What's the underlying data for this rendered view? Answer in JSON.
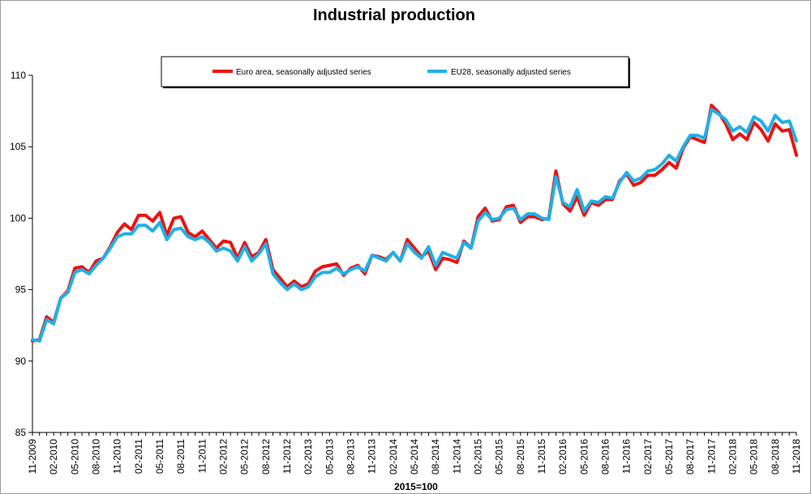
{
  "chart_data": {
    "type": "line",
    "title": "Industrial production",
    "xlabel": "2015=100",
    "ylabel": "",
    "ylim": [
      85,
      110
    ],
    "yticks": [
      85,
      90,
      95,
      100,
      105,
      110
    ],
    "x": [
      "11-2009",
      "12-2009",
      "01-2010",
      "02-2010",
      "03-2010",
      "04-2010",
      "05-2010",
      "06-2010",
      "07-2010",
      "08-2010",
      "09-2010",
      "10-2010",
      "11-2010",
      "12-2010",
      "01-2011",
      "02-2011",
      "03-2011",
      "04-2011",
      "05-2011",
      "06-2011",
      "07-2011",
      "08-2011",
      "09-2011",
      "10-2011",
      "11-2011",
      "12-2011",
      "01-2012",
      "02-2012",
      "03-2012",
      "04-2012",
      "05-2012",
      "06-2012",
      "07-2012",
      "08-2012",
      "09-2012",
      "10-2012",
      "11-2012",
      "12-2012",
      "01-2013",
      "02-2013",
      "03-2013",
      "04-2013",
      "05-2013",
      "06-2013",
      "07-2013",
      "08-2013",
      "09-2013",
      "10-2013",
      "11-2013",
      "12-2013",
      "01-2014",
      "02-2014",
      "03-2014",
      "04-2014",
      "05-2014",
      "06-2014",
      "07-2014",
      "08-2014",
      "09-2014",
      "10-2014",
      "11-2014",
      "12-2014",
      "01-2015",
      "02-2015",
      "03-2015",
      "04-2015",
      "05-2015",
      "06-2015",
      "07-2015",
      "08-2015",
      "09-2015",
      "10-2015",
      "11-2015",
      "12-2015",
      "01-2016",
      "02-2016",
      "03-2016",
      "04-2016",
      "05-2016",
      "06-2016",
      "07-2016",
      "08-2016",
      "09-2016",
      "10-2016",
      "11-2016",
      "12-2016",
      "01-2017",
      "02-2017",
      "03-2017",
      "04-2017",
      "05-2017",
      "06-2017",
      "07-2017",
      "08-2017",
      "09-2017",
      "10-2017",
      "11-2017",
      "12-2017",
      "01-2018",
      "02-2018",
      "03-2018",
      "04-2018",
      "05-2018",
      "06-2018",
      "07-2018",
      "08-2018",
      "09-2018",
      "10-2018",
      "11-2018"
    ],
    "xtick_labels": [
      "11-2009",
      "02-2010",
      "05-2010",
      "08-2010",
      "11-2010",
      "02-2011",
      "05-2011",
      "08-2011",
      "11-2011",
      "02-2012",
      "05-2012",
      "08-2012",
      "11-2012",
      "02-2013",
      "05-2013",
      "08-2013",
      "11-2013",
      "02-2014",
      "05-2014",
      "08-2014",
      "11-2014",
      "02-2015",
      "05-2015",
      "08-2015",
      "11-2015",
      "02-2016",
      "05-2016",
      "08-2016",
      "11-2016",
      "02-2017",
      "05-2017",
      "08-2017",
      "11-2017",
      "02-2018",
      "05-2018",
      "08-2018",
      "11-2018"
    ],
    "grid": false,
    "legend_position": "top-center",
    "series": [
      {
        "name": "Euro area, seasonally adjusted series",
        "color": "#ee1111",
        "values": [
          91.4,
          91.5,
          93.1,
          92.7,
          94.4,
          94.9,
          96.5,
          96.6,
          96.2,
          97.0,
          97.2,
          98.0,
          99.0,
          99.6,
          99.2,
          100.2,
          100.2,
          99.8,
          100.4,
          98.8,
          100.0,
          100.1,
          99.0,
          98.7,
          99.1,
          98.5,
          97.9,
          98.4,
          98.3,
          97.2,
          98.3,
          97.3,
          97.6,
          98.5,
          96.4,
          95.8,
          95.2,
          95.6,
          95.2,
          95.4,
          96.3,
          96.6,
          96.7,
          96.8,
          96.0,
          96.5,
          96.7,
          96.1,
          97.4,
          97.3,
          97.1,
          97.6,
          97.0,
          98.5,
          97.9,
          97.3,
          97.7,
          96.4,
          97.2,
          97.1,
          96.9,
          98.4,
          97.9,
          100.1,
          100.7,
          99.8,
          99.9,
          100.8,
          100.9,
          99.7,
          100.1,
          100.1,
          99.9,
          100.0,
          103.3,
          101.0,
          100.5,
          101.5,
          100.2,
          101.1,
          100.9,
          101.3,
          101.3,
          102.6,
          103.1,
          102.3,
          102.5,
          103.0,
          103.0,
          103.4,
          103.9,
          103.5,
          104.9,
          105.7,
          105.5,
          105.3,
          107.9,
          107.4,
          106.6,
          105.5,
          105.9,
          105.5,
          106.7,
          106.2,
          105.4,
          106.6,
          106.1,
          106.2,
          104.4
        ]
      },
      {
        "name": "EU28, seasonally adjusted series",
        "color": "#1fb0e6",
        "values": [
          91.5,
          91.4,
          92.9,
          92.6,
          94.4,
          94.8,
          96.2,
          96.4,
          96.1,
          96.7,
          97.2,
          97.9,
          98.7,
          98.9,
          98.9,
          99.5,
          99.5,
          99.1,
          99.7,
          98.5,
          99.2,
          99.3,
          98.7,
          98.5,
          98.7,
          98.3,
          97.7,
          97.9,
          97.7,
          97.0,
          98.0,
          97.0,
          97.5,
          98.2,
          96.1,
          95.5,
          95.0,
          95.4,
          95.0,
          95.2,
          95.9,
          96.2,
          96.2,
          96.5,
          96.1,
          96.4,
          96.6,
          96.3,
          97.4,
          97.2,
          97.0,
          97.6,
          97.0,
          98.2,
          97.6,
          97.2,
          98.0,
          96.7,
          97.6,
          97.4,
          97.2,
          98.3,
          97.9,
          99.8,
          100.4,
          99.9,
          100.0,
          100.6,
          100.7,
          99.9,
          100.3,
          100.3,
          100.0,
          99.9,
          102.9,
          101.1,
          100.8,
          102.0,
          100.5,
          101.2,
          101.1,
          101.5,
          101.4,
          102.5,
          103.2,
          102.6,
          102.8,
          103.3,
          103.4,
          103.8,
          104.4,
          104.0,
          105.0,
          105.8,
          105.8,
          105.6,
          107.6,
          107.3,
          106.9,
          106.1,
          106.4,
          106.0,
          107.1,
          106.8,
          106.1,
          107.2,
          106.7,
          106.8,
          105.4
        ]
      }
    ]
  }
}
